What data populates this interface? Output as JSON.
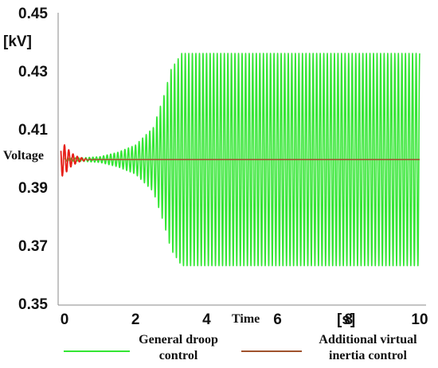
{
  "chart_data": {
    "type": "line",
    "ylabel": "Voltage",
    "yunit": "[kV]",
    "xlabel": "Time",
    "xunit": "[s]",
    "xlim": [
      -0.1,
      10
    ],
    "ylim": [
      0.35,
      0.45
    ],
    "xticks": [
      "0",
      "2",
      "4",
      "6",
      "8",
      "10"
    ],
    "yticks": [
      "0.45",
      "0.43",
      "0.41",
      "0.39",
      "0.37",
      "0.35"
    ],
    "grid": false,
    "legend_position": "bottom",
    "series": [
      {
        "name": "General droop control",
        "color": "#33e633",
        "shape": "growing oscillation",
        "center": 0.3995,
        "period_s": 0.1,
        "envelope": {
          "t": [
            0,
            0.5,
            1.0,
            1.5,
            2.0,
            2.5,
            2.8,
            3.0,
            3.3,
            3.5,
            10
          ],
          "amp": [
            0.0005,
            0.0006,
            0.001,
            0.0025,
            0.005,
            0.011,
            0.022,
            0.031,
            0.0365,
            0.0365,
            0.0365
          ]
        }
      },
      {
        "name": "Additional virtual inertia control",
        "color": "#a0522d",
        "shape": "damped oscillation",
        "center": 0.3995,
        "period_s": 0.12,
        "envelope": {
          "t": [
            -0.1,
            0,
            0.2,
            0.4,
            0.6,
            1.0,
            10
          ],
          "amp": [
            0.006,
            0.005,
            0.0022,
            0.0008,
            0.0003,
            0.0,
            0.0
          ]
        }
      }
    ]
  },
  "legend": {
    "items": [
      {
        "line1": "General droop",
        "line2": "control",
        "color": "#33e633"
      },
      {
        "line1": "Additional virtual",
        "line2": "inertia control",
        "color": "#a0522d"
      }
    ]
  }
}
